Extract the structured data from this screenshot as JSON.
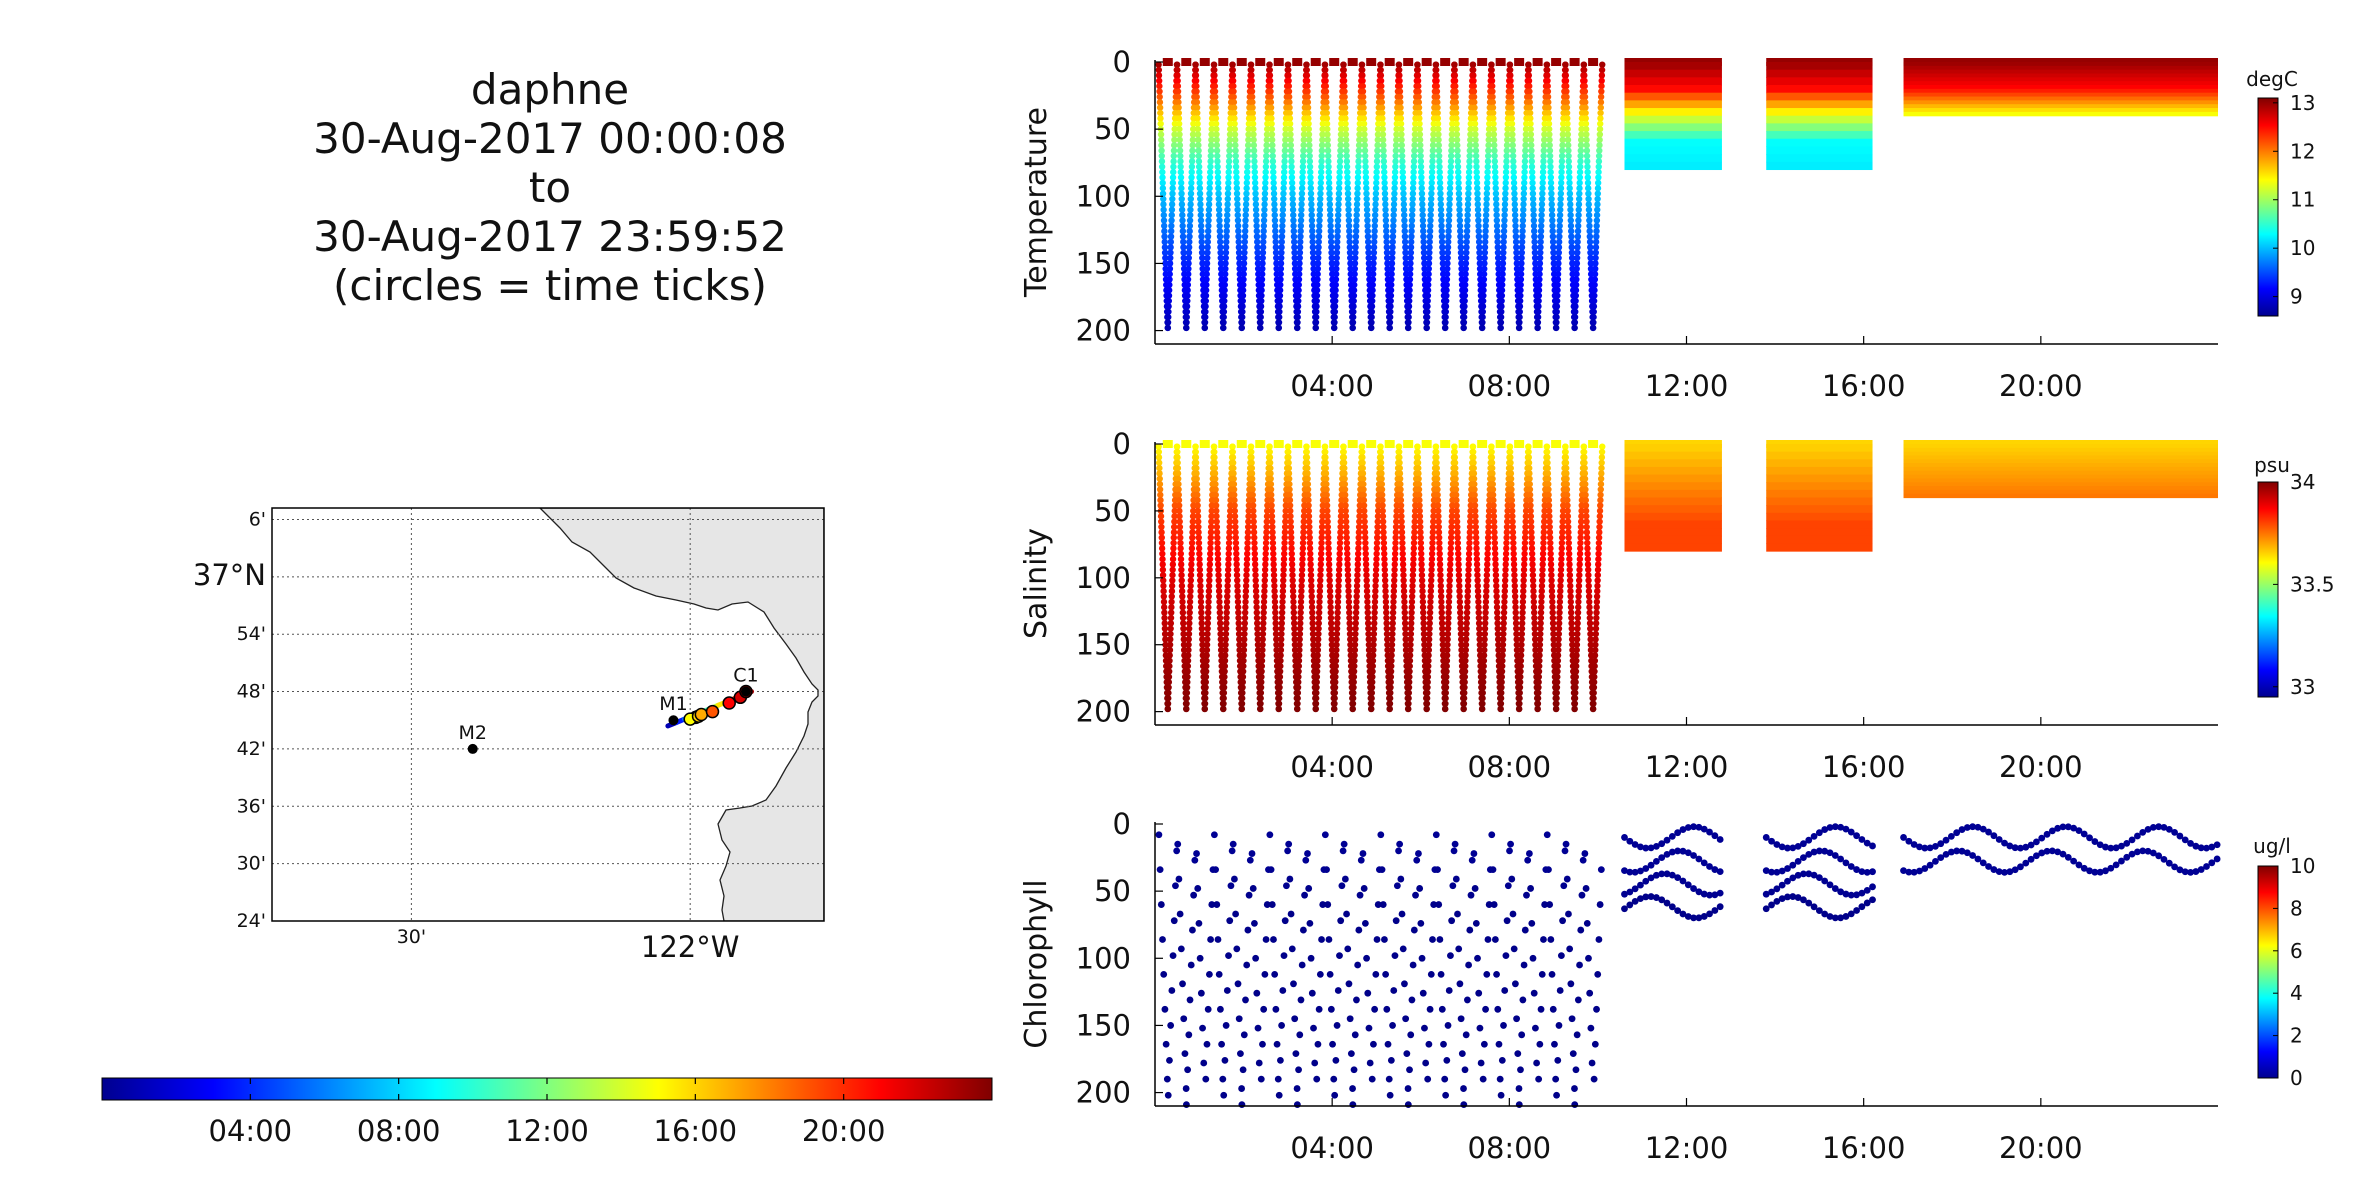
{
  "title_lines": [
    "daphne",
    "30-Aug-2017 00:00:08",
    "to",
    "30-Aug-2017 23:59:52",
    "(circles = time ticks)"
  ],
  "time_colorbar": {
    "colormap": "jet",
    "range_hours": [
      0,
      24
    ],
    "ticks": [
      {
        "hour": 4,
        "label": "04:00"
      },
      {
        "hour": 8,
        "label": "08:00"
      },
      {
        "hour": 12,
        "label": "12:00"
      },
      {
        "hour": 16,
        "label": "16:00"
      },
      {
        "hour": 20,
        "label": "20:00"
      }
    ]
  },
  "map": {
    "lon_range": [
      -122.75,
      -121.76
    ],
    "lat_range": [
      36.4,
      37.12
    ],
    "lon_ticks": [
      {
        "lon": -122.5,
        "label": "30'"
      },
      {
        "lon": -122.0,
        "label": "122°W"
      }
    ],
    "lat_ticks": [
      {
        "lat": 37.1,
        "label": "6'"
      },
      {
        "lat": 37.0,
        "label": "37°N"
      },
      {
        "lat": 36.9,
        "label": "54'"
      },
      {
        "lat": 36.8,
        "label": "48'"
      },
      {
        "lat": 36.7,
        "label": "42'"
      },
      {
        "lat": 36.6,
        "label": "36'"
      },
      {
        "lat": 36.5,
        "label": "30'"
      },
      {
        "lat": 36.4,
        "label": "24'"
      }
    ],
    "grid": true,
    "land_color": "#e6e6e6",
    "stations": [
      {
        "name": "M2",
        "lon": -122.39,
        "lat": 36.7
      },
      {
        "name": "M1",
        "lon": -122.03,
        "lat": 36.75
      },
      {
        "name": "C1",
        "lon": -121.9,
        "lat": 36.8
      }
    ],
    "track": {
      "start": {
        "lon": -122.04,
        "lat": 36.74
      },
      "end": {
        "lon": -121.89,
        "lat": 36.8
      }
    },
    "time_tick_circles": [
      {
        "hour": 14,
        "lon": -121.99,
        "lat": 36.755
      },
      {
        "hour": 15,
        "lon": -122.0,
        "lat": 36.752
      },
      {
        "hour": 16,
        "lon": -121.985,
        "lat": 36.757
      },
      {
        "hour": 17,
        "lon": -121.98,
        "lat": 36.76
      },
      {
        "hour": 19,
        "lon": -121.96,
        "lat": 36.765
      },
      {
        "hour": 21,
        "lon": -121.93,
        "lat": 36.78
      },
      {
        "hour": 22,
        "lon": -121.91,
        "lat": 36.79
      },
      {
        "hour": 23,
        "lon": -121.9,
        "lat": 36.8
      }
    ]
  },
  "chart_data": [
    {
      "type": "scatter",
      "ylabel": "Temperature",
      "unit": "degC",
      "x_range_hours": [
        0,
        24
      ],
      "x_ticks": [
        {
          "hour": 4,
          "label": "04:00"
        },
        {
          "hour": 8,
          "label": "08:00"
        },
        {
          "hour": 12,
          "label": "12:00"
        },
        {
          "hour": 16,
          "label": "16:00"
        },
        {
          "hour": 20,
          "label": "20:00"
        }
      ],
      "ylim": [
        0,
        210
      ],
      "y_ticks": [
        0,
        50,
        100,
        150,
        200
      ],
      "y_inverted": true,
      "colorbar": {
        "range": [
          8.6,
          13.1
        ],
        "ticks": [
          9,
          10,
          11,
          12,
          13
        ],
        "labels": [
          "9",
          "10",
          "11",
          "12",
          "13"
        ]
      },
      "profiles": {
        "deep_profile_start_hour": 0.08,
        "deep_profile_end_hour": 10.1,
        "deep_profile_count": 24,
        "deep_max_depth": 200,
        "shallow_segments": [
          {
            "start": 10.6,
            "end": 12.8,
            "max_depth": 80
          },
          {
            "start": 13.8,
            "end": 16.2,
            "max_depth": 80
          },
          {
            "start": 16.9,
            "end": 24.0,
            "max_depth": 40
          }
        ]
      },
      "profile_values": {
        "depths": [
          0,
          25,
          50,
          75,
          100,
          150,
          200
        ],
        "deep_values": [
          13.0,
          12.2,
          11.2,
          10.5,
          10.0,
          9.3,
          8.8
        ],
        "shallow_values": [
          13.0,
          12.5,
          11.3,
          10.3,
          10.2
        ]
      }
    },
    {
      "type": "scatter",
      "ylabel": "Salinity",
      "unit": "psu",
      "x_range_hours": [
        0,
        24
      ],
      "x_ticks": [
        {
          "hour": 4,
          "label": "04:00"
        },
        {
          "hour": 8,
          "label": "08:00"
        },
        {
          "hour": 12,
          "label": "12:00"
        },
        {
          "hour": 16,
          "label": "16:00"
        },
        {
          "hour": 20,
          "label": "20:00"
        }
      ],
      "ylim": [
        0,
        210
      ],
      "y_ticks": [
        0,
        50,
        100,
        150,
        200
      ],
      "y_inverted": true,
      "colorbar": {
        "range": [
          32.95,
          34.0
        ],
        "ticks": [
          33,
          33.5,
          34
        ],
        "labels": [
          "33",
          "33.5",
          "34"
        ]
      },
      "profiles": {
        "deep_profile_start_hour": 0.08,
        "deep_profile_end_hour": 10.1,
        "deep_profile_count": 24,
        "deep_max_depth": 200,
        "shallow_segments": [
          {
            "start": 10.6,
            "end": 12.8,
            "max_depth": 80
          },
          {
            "start": 13.8,
            "end": 16.2,
            "max_depth": 80
          },
          {
            "start": 16.9,
            "end": 24.0,
            "max_depth": 40
          }
        ]
      },
      "profile_values": {
        "depths": [
          0,
          25,
          50,
          75,
          100,
          150,
          200
        ],
        "deep_values": [
          33.6,
          33.7,
          33.8,
          33.85,
          33.9,
          33.95,
          34.0
        ],
        "shallow_values": [
          33.65,
          33.7,
          33.75,
          33.8,
          33.8
        ]
      }
    },
    {
      "type": "scatter",
      "ylabel": "Chlorophyll",
      "unit": "ug/l",
      "x_range_hours": [
        0,
        24
      ],
      "x_ticks": [
        {
          "hour": 4,
          "label": "04:00"
        },
        {
          "hour": 8,
          "label": "08:00"
        },
        {
          "hour": 12,
          "label": "12:00"
        },
        {
          "hour": 16,
          "label": "16:00"
        },
        {
          "hour": 20,
          "label": "20:00"
        }
      ],
      "ylim": [
        0,
        210
      ],
      "y_ticks": [
        0,
        50,
        100,
        150,
        200
      ],
      "y_inverted": true,
      "colorbar": {
        "range": [
          0,
          10
        ],
        "ticks": [
          0,
          2,
          4,
          6,
          8,
          10
        ],
        "labels": [
          "0",
          "2",
          "4",
          "6",
          "8",
          "10"
        ]
      },
      "profiles": {
        "deep_profile_start_hour": 0.08,
        "deep_profile_end_hour": 10.1,
        "deep_profile_count": 24,
        "deep_max_depth": 200,
        "shallow_segments": [
          {
            "start": 10.6,
            "end": 12.8,
            "max_depth": 80
          },
          {
            "start": 13.8,
            "end": 16.2,
            "max_depth": 80
          },
          {
            "start": 16.9,
            "end": 24.0,
            "max_depth": 40
          }
        ]
      },
      "profile_values": {
        "depths": [
          0,
          25,
          50,
          75,
          100,
          150,
          200
        ],
        "deep_values": [
          0.2,
          0.2,
          0.1,
          0.1,
          0.1,
          0.1,
          0.1
        ],
        "shallow_values": [
          0.2,
          0.2,
          0.2,
          0.1,
          0.1
        ]
      },
      "sparse_samples": true
    }
  ]
}
